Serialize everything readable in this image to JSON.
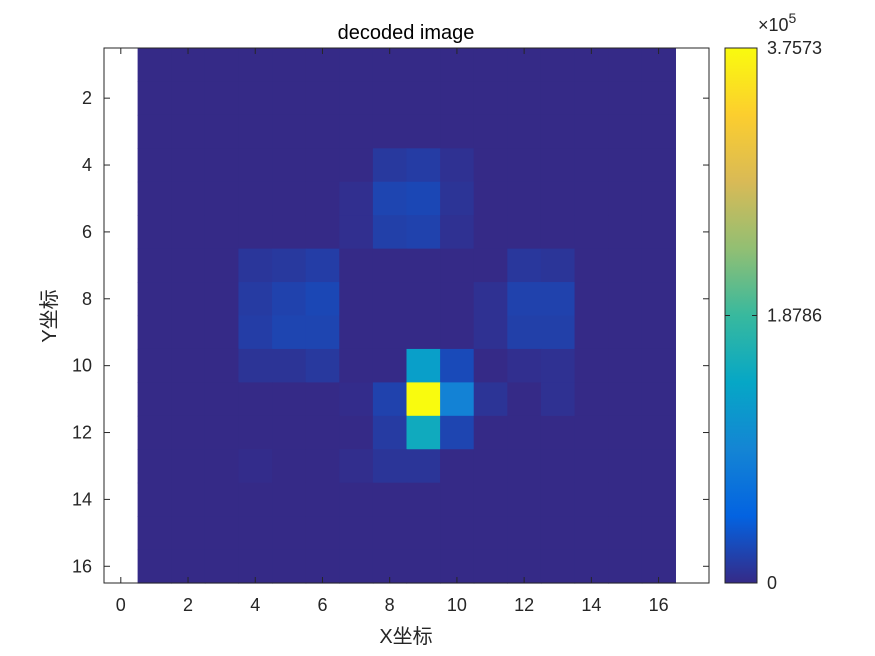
{
  "chart_data": {
    "type": "heatmap",
    "title": "decoded image",
    "xlabel": "X坐标",
    "ylabel": "Y坐标",
    "xlim": [
      -0.5,
      17.5
    ],
    "ylim": [
      0.5,
      16.5
    ],
    "x_ticks": [
      "0",
      "2",
      "4",
      "6",
      "8",
      "10",
      "12",
      "14",
      "16"
    ],
    "y_ticks": [
      "2",
      "4",
      "6",
      "8",
      "10",
      "12",
      "14",
      "16"
    ],
    "y_direction": "reverse",
    "colormap": "parula",
    "colorbar": {
      "min": 0,
      "max": 375730,
      "ticks": [
        "0",
        "1.8786",
        "3.7573"
      ],
      "exponent_label": "×10",
      "exponent_power": "5"
    },
    "matrix": [
      [
        0,
        0,
        0,
        0,
        0,
        0,
        0,
        0,
        0,
        0,
        0,
        0,
        0,
        0,
        0,
        0
      ],
      [
        0,
        0,
        0,
        0,
        0,
        0,
        0,
        0,
        0,
        0,
        0,
        0,
        0,
        0,
        0,
        0
      ],
      [
        0,
        0,
        0,
        0,
        0,
        0,
        0,
        0,
        0,
        0,
        0,
        0,
        0,
        0,
        0,
        0
      ],
      [
        0,
        0,
        0,
        0,
        0,
        0,
        0,
        12000,
        15000,
        6000,
        0,
        0,
        0,
        0,
        0,
        0
      ],
      [
        0,
        0,
        0,
        0,
        0,
        0,
        4000,
        22000,
        24000,
        8000,
        0,
        0,
        0,
        0,
        0,
        0
      ],
      [
        0,
        0,
        0,
        0,
        0,
        0,
        4000,
        18000,
        20000,
        6000,
        0,
        0,
        0,
        0,
        0,
        0
      ],
      [
        0,
        0,
        0,
        10000,
        12000,
        16000,
        0,
        0,
        0,
        0,
        0,
        11000,
        9000,
        0,
        0,
        0
      ],
      [
        0,
        0,
        0,
        14000,
        20000,
        24000,
        0,
        0,
        0,
        0,
        6000,
        20000,
        20000,
        0,
        0,
        0
      ],
      [
        0,
        0,
        0,
        16000,
        22000,
        22000,
        0,
        0,
        0,
        0,
        6000,
        18000,
        18000,
        0,
        0,
        0
      ],
      [
        0,
        0,
        0,
        8000,
        8000,
        12000,
        0,
        0,
        130000,
        26000,
        0,
        4000,
        6000,
        0,
        0,
        0
      ],
      [
        0,
        0,
        0,
        0,
        0,
        0,
        2000,
        20000,
        375730,
        90000,
        8000,
        0,
        6000,
        0,
        0,
        0
      ],
      [
        0,
        0,
        0,
        0,
        0,
        0,
        0,
        14000,
        150000,
        22000,
        0,
        0,
        0,
        0,
        0,
        0
      ],
      [
        0,
        0,
        0,
        2000,
        0,
        0,
        3000,
        9000,
        9000,
        0,
        0,
        0,
        0,
        0,
        0,
        0
      ],
      [
        0,
        0,
        0,
        0,
        0,
        0,
        0,
        0,
        0,
        0,
        0,
        0,
        0,
        0,
        0,
        0
      ],
      [
        0,
        0,
        0,
        0,
        0,
        0,
        0,
        0,
        0,
        0,
        0,
        0,
        0,
        0,
        0,
        0
      ],
      [
        0,
        0,
        0,
        0,
        0,
        0,
        0,
        0,
        0,
        0,
        0,
        0,
        0,
        0,
        0,
        0
      ]
    ]
  }
}
